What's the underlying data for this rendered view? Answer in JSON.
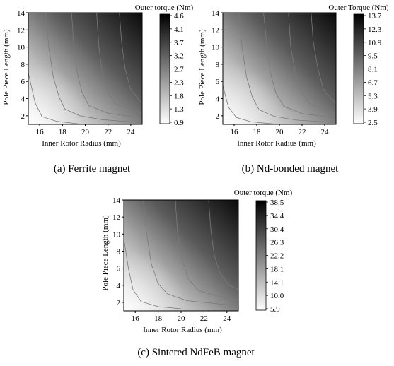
{
  "panels": [
    {
      "caption": "(a)  Ferrite  magnet",
      "chart_data": {
        "type": "heatmap",
        "xlabel": "Inner Rotor Radius (mm)",
        "ylabel": "Pole Piece Length (mm)",
        "xlim": [
          15,
          25
        ],
        "ylim": [
          1,
          14
        ],
        "xticks": [
          16,
          18,
          20,
          22,
          24
        ],
        "yticks": [
          2,
          4,
          6,
          8,
          10,
          12,
          14
        ],
        "colorbar_title": "Outer torque (Nm)",
        "colorbar_ticks": [
          "4.6",
          "4.1",
          "3.7",
          "3.2",
          "2.7",
          "2.3",
          "1.8",
          "1.3",
          "0.9"
        ],
        "color_range": [
          0.9,
          4.6
        ],
        "colormap": [
          "#ffffff",
          "#000000"
        ],
        "contour_curves": [
          [
            [
              15.0,
              7.0
            ],
            [
              15.6,
              3.5
            ],
            [
              16.2,
              1.9
            ],
            [
              17.5,
              1.35
            ],
            [
              19.5,
              1.05
            ]
          ],
          [
            [
              16.5,
              14.0
            ],
            [
              16.8,
              10.0
            ],
            [
              17.2,
              6.5
            ],
            [
              17.7,
              4.2
            ],
            [
              18.2,
              2.8
            ],
            [
              19.5,
              2.0
            ],
            [
              21.5,
              1.55
            ],
            [
              25.0,
              1.2
            ]
          ],
          [
            [
              18.8,
              14.0
            ],
            [
              19.0,
              10.0
            ],
            [
              19.3,
              7.0
            ],
            [
              19.7,
              4.8
            ],
            [
              20.3,
              3.2
            ],
            [
              22.0,
              2.3
            ],
            [
              25.0,
              1.75
            ]
          ],
          [
            [
              21.0,
              14.0
            ],
            [
              21.2,
              10.0
            ],
            [
              21.5,
              7.0
            ],
            [
              21.9,
              5.0
            ],
            [
              22.6,
              3.4
            ],
            [
              25.0,
              2.3
            ]
          ],
          [
            [
              23.0,
              14.0
            ],
            [
              23.2,
              10.5
            ],
            [
              23.5,
              7.5
            ],
            [
              24.0,
              5.0
            ],
            [
              25.0,
              3.5
            ]
          ]
        ]
      }
    },
    {
      "caption": "(b)  Nd-bonded  magnet",
      "chart_data": {
        "type": "heatmap",
        "xlabel": "Inner Rotor Radius (mm)",
        "ylabel": "Pole Piece Length (mm)",
        "xlim": [
          15,
          25
        ],
        "ylim": [
          1,
          14
        ],
        "xticks": [
          16,
          18,
          20,
          22,
          24
        ],
        "yticks": [
          2,
          4,
          6,
          8,
          10,
          12,
          14
        ],
        "colorbar_title": "Outer Torque (Nm)",
        "colorbar_ticks": [
          "13.7",
          "12.3",
          "10.9",
          "9.5",
          "8.1",
          "6.7",
          "5.3",
          "3.9",
          "2.5"
        ],
        "color_range": [
          2.5,
          13.7
        ],
        "colormap": [
          "#ffffff",
          "#000000"
        ],
        "contour_curves": [
          [
            [
              15.0,
              5.5
            ],
            [
              15.5,
              3.0
            ],
            [
              16.2,
              1.8
            ],
            [
              17.5,
              1.3
            ],
            [
              19.5,
              1.05
            ]
          ],
          [
            [
              16.4,
              14.0
            ],
            [
              16.7,
              10.0
            ],
            [
              17.1,
              6.5
            ],
            [
              17.6,
              4.2
            ],
            [
              18.2,
              2.7
            ],
            [
              19.5,
              1.95
            ],
            [
              21.5,
              1.5
            ],
            [
              25.0,
              1.2
            ]
          ],
          [
            [
              18.6,
              14.0
            ],
            [
              18.9,
              10.0
            ],
            [
              19.2,
              7.0
            ],
            [
              19.7,
              4.6
            ],
            [
              20.4,
              3.1
            ],
            [
              22.0,
              2.25
            ],
            [
              25.0,
              1.75
            ]
          ],
          [
            [
              20.8,
              14.0
            ],
            [
              21.0,
              10.0
            ],
            [
              21.4,
              7.0
            ],
            [
              21.9,
              4.9
            ],
            [
              22.7,
              3.3
            ],
            [
              25.0,
              2.3
            ]
          ],
          [
            [
              22.8,
              14.0
            ],
            [
              23.0,
              10.5
            ],
            [
              23.4,
              7.5
            ],
            [
              23.9,
              5.0
            ],
            [
              25.0,
              3.4
            ]
          ]
        ]
      }
    },
    {
      "caption": "(c)  Sintered  NdFeB  magnet",
      "chart_data": {
        "type": "heatmap",
        "xlabel": "Inner Rotor Radius (mm)",
        "ylabel": "Pole Piece Length (mm)",
        "xlim": [
          15,
          25
        ],
        "ylim": [
          1,
          14
        ],
        "xticks": [
          16,
          18,
          20,
          22,
          24
        ],
        "yticks": [
          2,
          4,
          6,
          8,
          10,
          12,
          14
        ],
        "colorbar_title": "Outer torque (Nm)",
        "colorbar_ticks": [
          "38.5",
          "34.4",
          "30.4",
          "26.3",
          "22.2",
          "18.1",
          "14.1",
          "10.0",
          "5.9"
        ],
        "color_range": [
          5.9,
          38.5
        ],
        "colormap": [
          "#ffffff",
          "#000000"
        ],
        "contour_curves": [
          [
            [
              15.0,
              9.5
            ],
            [
              15.4,
              6.0
            ],
            [
              15.8,
              3.5
            ],
            [
              16.5,
              2.1
            ],
            [
              18.0,
              1.5
            ],
            [
              20.0,
              1.25
            ]
          ],
          [
            [
              16.7,
              14.0
            ],
            [
              17.0,
              10.0
            ],
            [
              17.4,
              6.5
            ],
            [
              18.0,
              4.2
            ],
            [
              18.8,
              3.0
            ],
            [
              20.5,
              2.2
            ],
            [
              25.0,
              1.6
            ]
          ],
          [
            [
              19.5,
              14.0
            ],
            [
              19.7,
              10.0
            ],
            [
              20.1,
              7.0
            ],
            [
              20.6,
              4.8
            ],
            [
              21.5,
              3.4
            ],
            [
              23.5,
              2.6
            ],
            [
              25.0,
              2.3
            ]
          ],
          [
            [
              22.4,
              14.0
            ],
            [
              22.6,
              10.5
            ],
            [
              22.9,
              7.5
            ],
            [
              23.4,
              5.4
            ],
            [
              24.2,
              4.0
            ],
            [
              25.0,
              3.5
            ]
          ]
        ]
      }
    }
  ]
}
